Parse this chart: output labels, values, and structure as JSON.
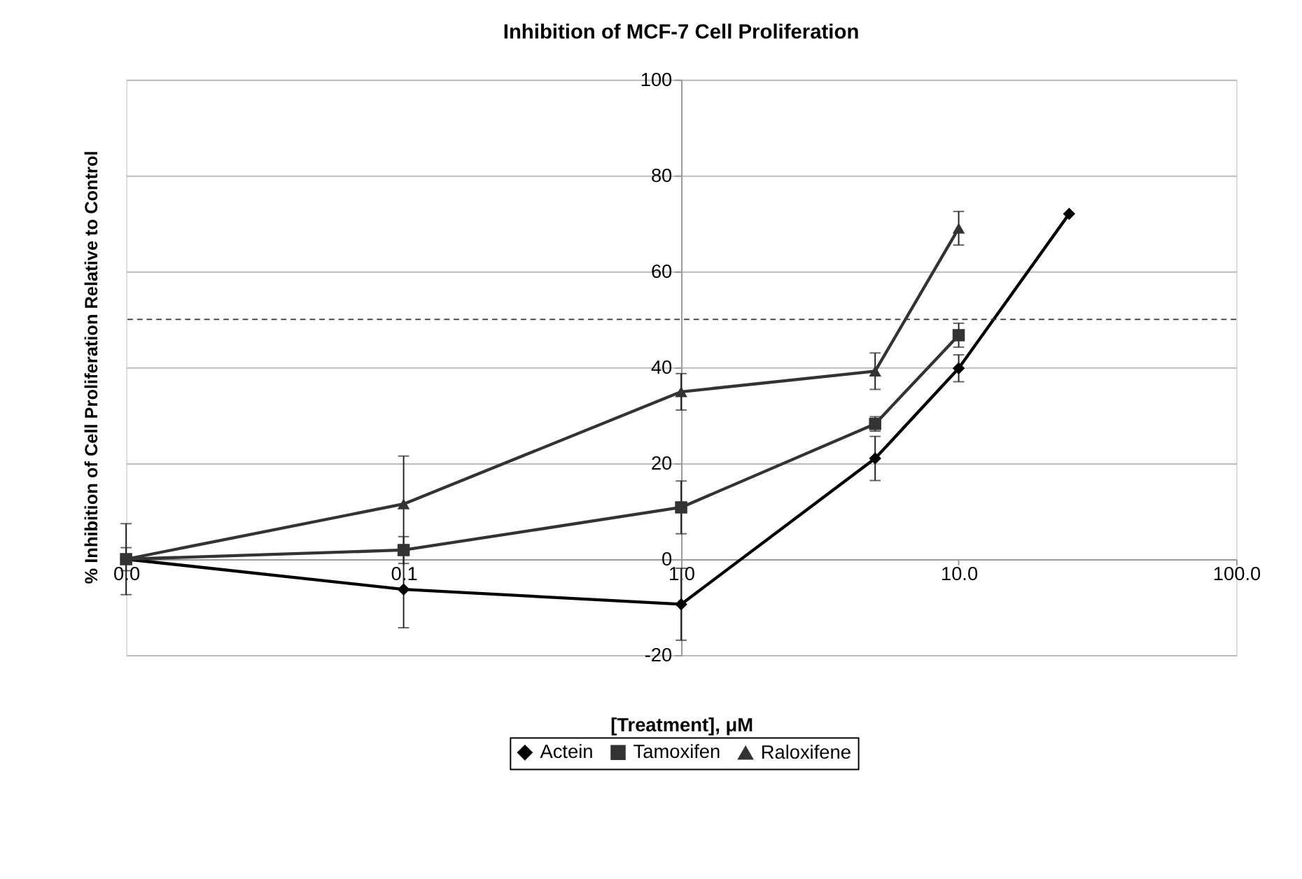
{
  "chart_data": {
    "type": "line",
    "title": "Inhibition of MCF-7 Cell Proliferation",
    "xlabel": "[Treatment], μM",
    "ylabel": "% Inhibition of Cell Proliferation Relative to Control",
    "log": "x",
    "xlim": [
      0.01,
      100
    ],
    "xticks": [
      {
        "value": 0.01,
        "label": "0.0"
      },
      {
        "value": 0.1,
        "label": "0.1"
      },
      {
        "value": 1,
        "label": "1.0"
      },
      {
        "value": 10,
        "label": "10.0"
      },
      {
        "value": 100,
        "label": "100.0"
      }
    ],
    "ylim": [
      -20,
      100
    ],
    "yticks": [
      -20,
      0,
      20,
      40,
      60,
      80,
      100
    ],
    "grid": "y",
    "legend": "bottom",
    "line_style": "solid",
    "series": [
      {
        "name": "Actein",
        "color": "#000000",
        "marker": "diamond",
        "x": [
          0.01,
          0.1,
          1,
          5,
          10,
          25
        ],
        "values": [
          0,
          -6.3,
          -9.4,
          21,
          39.8,
          72
        ],
        "errors": [
          null,
          8,
          7.5,
          4.6,
          2.8,
          null
        ]
      },
      {
        "name": "Tamoxifen",
        "color": "#333333",
        "marker": "square",
        "x": [
          0.01,
          0.1,
          1,
          5,
          10
        ],
        "values": [
          0,
          1.9,
          10.8,
          28.2,
          46.7
        ],
        "errors": [
          2.4,
          2.8,
          5.5,
          1.5,
          2.5
        ]
      },
      {
        "name": "Raloxifene",
        "color": "#333333",
        "marker": "triangle",
        "x": [
          0.01,
          0.1,
          1,
          5,
          10
        ],
        "values": [
          0,
          11.5,
          34.9,
          39.2,
          69
        ],
        "errors": [
          7.4,
          10,
          3.8,
          3.8,
          3.5
        ]
      }
    ],
    "ref_lines": [
      {
        "axis": "y",
        "value": 50,
        "line_style": "dashed",
        "color": "#333333"
      }
    ]
  }
}
